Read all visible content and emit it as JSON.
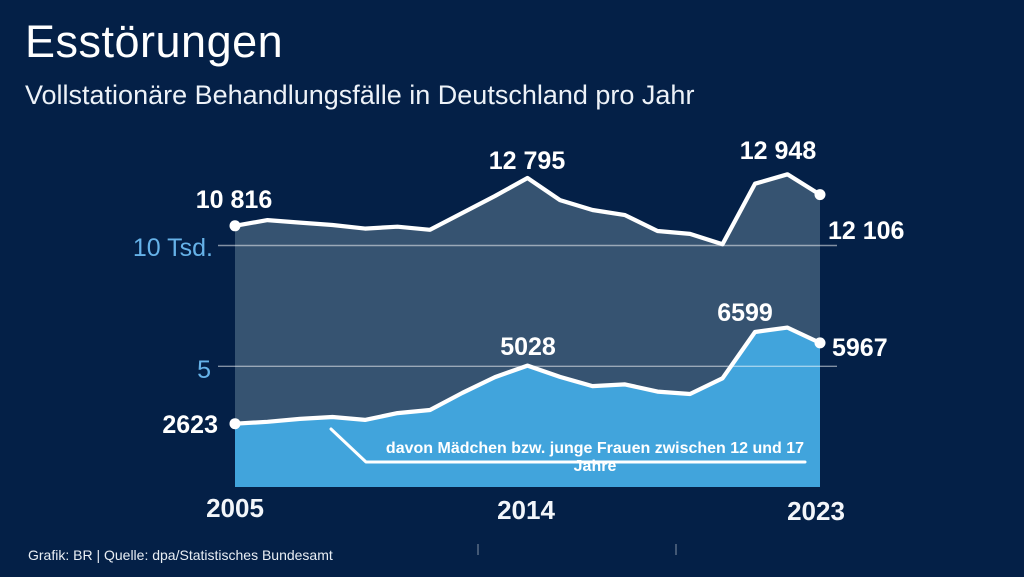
{
  "header": {
    "title": "Esstörungen",
    "subtitle": "Vollstationäre Behandlungsfälle in Deutschland pro Jahr"
  },
  "footer": {
    "credit": "Grafik: BR | Quelle: dpa/Statistisches Bundesamt"
  },
  "colors": {
    "background": "#042047",
    "total_area": "#365371",
    "girls_area": "#41a4dc",
    "series_line": "#ffffff",
    "axis_label": "#66b2e8",
    "gridline": "#ffffff"
  },
  "chart_data": {
    "type": "area",
    "title": "Esstörungen",
    "subtitle": "Vollstationäre Behandlungsfälle in Deutschland pro Jahr",
    "x": [
      2005,
      2006,
      2007,
      2008,
      2009,
      2010,
      2011,
      2012,
      2013,
      2014,
      2015,
      2016,
      2017,
      2018,
      2019,
      2020,
      2021,
      2022,
      2023
    ],
    "series": [
      {
        "name": "Vollstationäre Behandlungsfälle in Deutschland pro Jahr",
        "fill": "#365371",
        "line": "#ffffff",
        "values": [
          10816,
          11050,
          10950,
          10850,
          10700,
          10780,
          10650,
          11350,
          12050,
          12795,
          11880,
          11470,
          11260,
          10600,
          10480,
          10050,
          12560,
          12948,
          12106
        ]
      },
      {
        "name": "davon Mädchen bzw. junge Frauen zwischen 12 und 17 Jahre",
        "fill": "#41a4dc",
        "line": "#ffffff",
        "values": [
          2623,
          2700,
          2820,
          2900,
          2780,
          3060,
          3190,
          3900,
          4550,
          5028,
          4560,
          4180,
          4250,
          3950,
          3850,
          4500,
          6420,
          6599,
          5967
        ]
      }
    ],
    "point_labels": {
      "total_start": "10 816",
      "total_2014": "12 795",
      "total_2022": "12 948",
      "total_end": "12 106",
      "girls_start": "2623",
      "girls_2014": "5028",
      "girls_2022": "6599",
      "girls_end": "5967"
    },
    "y_axis": {
      "unit": "Tsd.",
      "range": [
        0,
        13500
      ],
      "grid": true,
      "ticks": [
        {
          "label": "10 Tsd.",
          "value": 10000
        },
        {
          "label": "5",
          "value": 5000
        }
      ]
    },
    "x_axis": {
      "ticks": [
        {
          "label": "2005",
          "value": 2005
        },
        {
          "label": "2014",
          "value": 2014
        },
        {
          "label": "2023",
          "value": 2023
        }
      ]
    },
    "annotation": {
      "text": "davon Mädchen bzw. junge Frauen zwischen 12 und 17 Jahre"
    },
    "legend_position": "none"
  }
}
